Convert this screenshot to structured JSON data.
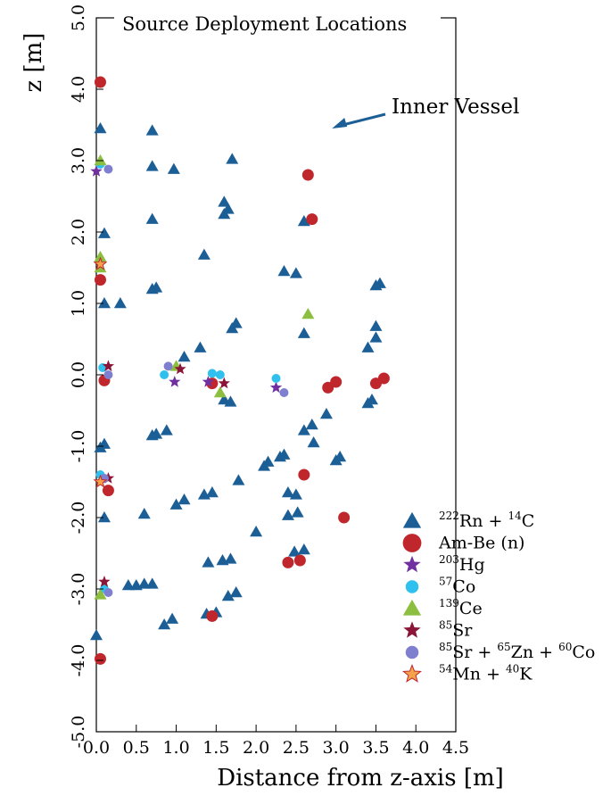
{
  "chart_data": {
    "type": "scatter",
    "title": "Source Deployment Locations",
    "xlabel": "Distance from z-axis [m]",
    "ylabel": "z [m]",
    "xlim": [
      0.0,
      4.5
    ],
    "ylim": [
      -5.0,
      5.0
    ],
    "x_ticks": [
      "0.0",
      "0.5",
      "1.0",
      "1.5",
      "2.0",
      "2.5",
      "3.0",
      "3.5",
      "4.0",
      "4.5"
    ],
    "y_ticks": [
      "-5.0",
      "-4.0",
      "-3.0",
      "-2.0",
      "-1.0",
      "0.0",
      "1.0",
      "2.0",
      "3.0",
      "4.0",
      "5.0"
    ],
    "grid": false,
    "legend_position": "bottom-right",
    "annotation": {
      "text": "Inner Vessel",
      "arrow_to": [
        2.95,
        3.45
      ]
    },
    "vessel_radius": 4.25,
    "series": [
      {
        "name_parts": [
          [
            "222",
            "Rn + "
          ],
          [
            "14",
            "C"
          ]
        ],
        "marker": "triangle",
        "color": "#1c5f96",
        "points": [
          [
            0.05,
            3.45
          ],
          [
            0.7,
            3.42
          ],
          [
            1.7,
            3.02
          ],
          [
            0.7,
            2.92
          ],
          [
            0.97,
            2.88
          ],
          [
            1.6,
            2.42
          ],
          [
            1.65,
            2.32
          ],
          [
            1.6,
            2.25
          ],
          [
            0.7,
            2.18
          ],
          [
            2.6,
            2.15
          ],
          [
            0.1,
            1.98
          ],
          [
            1.35,
            1.68
          ],
          [
            2.35,
            1.45
          ],
          [
            2.5,
            1.42
          ],
          [
            0.7,
            1.2
          ],
          [
            0.75,
            1.22
          ],
          [
            3.55,
            1.28
          ],
          [
            3.5,
            1.25
          ],
          [
            0.1,
            1.0
          ],
          [
            0.3,
            1.0
          ],
          [
            1.75,
            0.72
          ],
          [
            1.7,
            0.65
          ],
          [
            3.5,
            0.68
          ],
          [
            2.6,
            0.58
          ],
          [
            3.5,
            0.52
          ],
          [
            1.3,
            0.38
          ],
          [
            1.1,
            0.25
          ],
          [
            3.4,
            0.38
          ],
          [
            1.6,
            -0.35
          ],
          [
            1.68,
            -0.38
          ],
          [
            3.45,
            -0.35
          ],
          [
            3.4,
            -0.4
          ],
          [
            2.88,
            -0.55
          ],
          [
            2.7,
            -0.7
          ],
          [
            2.6,
            -0.78
          ],
          [
            2.72,
            -0.95
          ],
          [
            0.88,
            -0.78
          ],
          [
            0.7,
            -0.85
          ],
          [
            0.75,
            -0.83
          ],
          [
            0.1,
            -0.97
          ],
          [
            0.05,
            -1.02
          ],
          [
            2.35,
            -1.12
          ],
          [
            2.3,
            -1.15
          ],
          [
            2.15,
            -1.22
          ],
          [
            2.1,
            -1.28
          ],
          [
            3.05,
            -1.15
          ],
          [
            3.0,
            -1.2
          ],
          [
            1.45,
            -1.65
          ],
          [
            1.35,
            -1.68
          ],
          [
            1.1,
            -1.75
          ],
          [
            1.0,
            -1.82
          ],
          [
            1.78,
            -1.48
          ],
          [
            2.4,
            -1.65
          ],
          [
            2.5,
            -1.68
          ],
          [
            0.6,
            -1.95
          ],
          [
            0.1,
            -2.0
          ],
          [
            2.4,
            -1.97
          ],
          [
            2.52,
            -1.93
          ],
          [
            2.0,
            -2.2
          ],
          [
            1.68,
            -2.58
          ],
          [
            1.58,
            -2.6
          ],
          [
            1.4,
            -2.63
          ],
          [
            2.48,
            -2.48
          ],
          [
            2.6,
            -2.45
          ],
          [
            0.4,
            -2.95
          ],
          [
            0.5,
            -2.95
          ],
          [
            0.6,
            -2.93
          ],
          [
            0.7,
            -2.93
          ],
          [
            1.75,
            -3.05
          ],
          [
            1.65,
            -3.1
          ],
          [
            1.5,
            -3.33
          ],
          [
            1.38,
            -3.35
          ],
          [
            0.95,
            -3.42
          ],
          [
            0.85,
            -3.5
          ],
          [
            0.0,
            -3.65
          ]
        ]
      },
      {
        "name_parts": [
          [
            "",
            "Am-Be (n)"
          ]
        ],
        "marker": "circle",
        "color": "#c0272d",
        "points": [
          [
            0.05,
            4.1
          ],
          [
            2.65,
            2.8
          ],
          [
            2.7,
            2.18
          ],
          [
            0.05,
            1.33
          ],
          [
            3.0,
            -0.1
          ],
          [
            2.9,
            -0.18
          ],
          [
            3.6,
            -0.05
          ],
          [
            3.5,
            -0.12
          ],
          [
            1.45,
            -0.12
          ],
          [
            0.1,
            -0.08
          ],
          [
            2.6,
            -1.4
          ],
          [
            0.15,
            -1.62
          ],
          [
            3.1,
            -2.0
          ],
          [
            2.4,
            -2.63
          ],
          [
            2.55,
            -2.6
          ],
          [
            1.45,
            -3.38
          ],
          [
            0.05,
            -3.98
          ]
        ]
      },
      {
        "name_parts": [
          [
            "203",
            "Hg"
          ]
        ],
        "marker": "star",
        "color": "#7030a0",
        "points": [
          [
            0.0,
            2.85
          ],
          [
            0.98,
            -0.1
          ],
          [
            1.4,
            -0.1
          ],
          [
            2.25,
            -0.18
          ]
        ]
      },
      {
        "name_parts": [
          [
            "57",
            "Co"
          ]
        ],
        "marker": "circle-small",
        "color": "#30c0ee",
        "points": [
          [
            0.05,
            2.95
          ],
          [
            0.08,
            0.1
          ],
          [
            0.85,
            0.0
          ],
          [
            1.45,
            0.02
          ],
          [
            1.55,
            0.0
          ],
          [
            2.25,
            -0.05
          ],
          [
            0.05,
            -1.4
          ],
          [
            0.1,
            -3.0
          ]
        ]
      },
      {
        "name_parts": [
          [
            "139",
            "Ce"
          ]
        ],
        "marker": "triangle",
        "color": "#8cbf3f",
        "points": [
          [
            0.05,
            3.0
          ],
          [
            0.05,
            1.65
          ],
          [
            0.05,
            1.5
          ],
          [
            2.65,
            0.85
          ],
          [
            1.55,
            -0.25
          ],
          [
            1.0,
            0.12
          ],
          [
            0.05,
            -3.08
          ]
        ]
      },
      {
        "name_parts": [
          [
            "85",
            "Sr"
          ]
        ],
        "marker": "star",
        "color": "#8a1538",
        "points": [
          [
            0.15,
            0.12
          ],
          [
            1.05,
            0.08
          ],
          [
            1.6,
            -0.12
          ],
          [
            0.15,
            -1.45
          ],
          [
            0.1,
            -2.9
          ]
        ]
      },
      {
        "name_parts": [
          [
            "85",
            "Sr + "
          ],
          [
            "65",
            "Zn + "
          ],
          [
            "60",
            "Co"
          ]
        ],
        "marker": "circle-small",
        "color": "#7f7fd0",
        "points": [
          [
            0.15,
            2.88
          ],
          [
            0.15,
            0.0
          ],
          [
            0.9,
            0.12
          ],
          [
            2.35,
            -0.25
          ],
          [
            0.1,
            -1.45
          ],
          [
            0.15,
            -3.05
          ]
        ]
      },
      {
        "name_parts": [
          [
            "54",
            "Mn + "
          ],
          [
            "40",
            "K"
          ]
        ],
        "marker": "star",
        "color": "#f5a34a",
        "points": [
          [
            0.05,
            1.55
          ],
          [
            0.05,
            -1.5
          ]
        ]
      }
    ]
  }
}
